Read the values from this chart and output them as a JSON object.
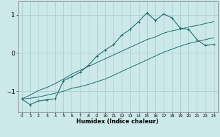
{
  "xlabel": "Humidex (Indice chaleur)",
  "ylabel": "",
  "bg_color": "#cce8e8",
  "line_color": "#1a6b6b",
  "grid_color": "#aacfcf",
  "x": [
    0,
    1,
    2,
    3,
    4,
    5,
    6,
    7,
    8,
    9,
    10,
    11,
    12,
    13,
    14,
    15,
    16,
    17,
    18,
    19,
    20,
    21,
    22,
    23
  ],
  "y_main": [
    -1.2,
    -1.35,
    -1.25,
    -1.22,
    -1.2,
    -0.72,
    -0.62,
    -0.5,
    -0.32,
    -0.08,
    0.08,
    0.22,
    0.47,
    0.62,
    0.82,
    1.05,
    0.85,
    1.02,
    0.92,
    0.65,
    0.62,
    0.35,
    0.2,
    0.22
  ],
  "y_upper": [
    -1.2,
    -1.1,
    -0.98,
    -0.9,
    -0.8,
    -0.68,
    -0.55,
    -0.45,
    -0.35,
    -0.25,
    -0.15,
    -0.05,
    0.05,
    0.15,
    0.25,
    0.35,
    0.42,
    0.52,
    0.58,
    0.62,
    0.68,
    0.72,
    0.77,
    0.82
  ],
  "y_lower": [
    -1.2,
    -1.18,
    -1.15,
    -1.1,
    -1.05,
    -1.0,
    -0.92,
    -0.88,
    -0.82,
    -0.75,
    -0.68,
    -0.58,
    -0.48,
    -0.38,
    -0.28,
    -0.18,
    -0.08,
    0.02,
    0.1,
    0.18,
    0.25,
    0.3,
    0.35,
    0.4
  ],
  "ylim": [
    -1.55,
    1.35
  ],
  "xlim": [
    -0.5,
    23.5
  ],
  "yticks": [
    -1,
    0,
    1
  ],
  "xticks": [
    0,
    1,
    2,
    3,
    4,
    5,
    6,
    7,
    8,
    9,
    10,
    11,
    12,
    13,
    14,
    15,
    16,
    17,
    18,
    19,
    20,
    21,
    22,
    23
  ]
}
